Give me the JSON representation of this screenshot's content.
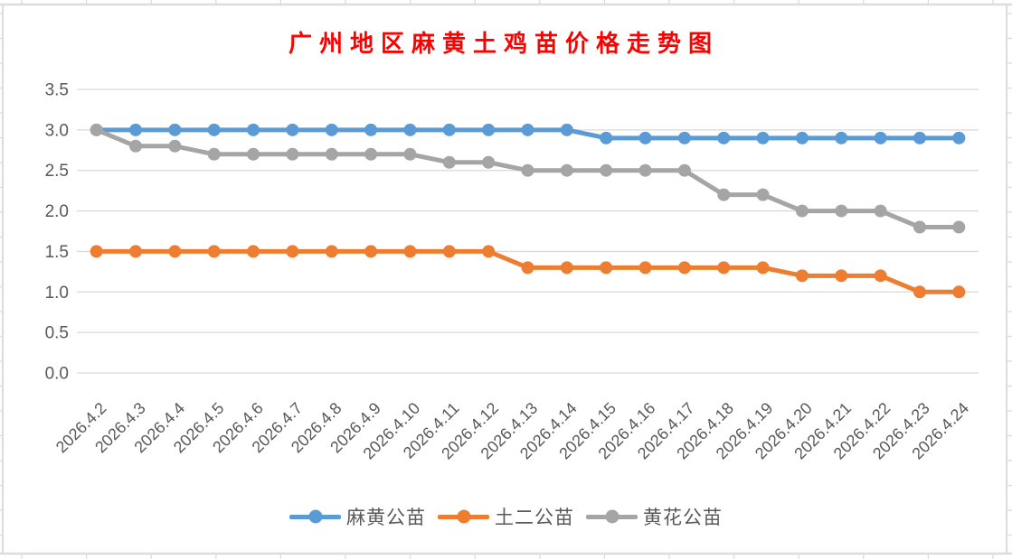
{
  "chart_data": {
    "type": "line",
    "title": "广州地区麻黄土鸡苗价格走势图",
    "title_color": "#FF0000",
    "categories": [
      "2026.4.2",
      "2026.4.3",
      "2026.4.4",
      "2026.4.5",
      "2026.4.6",
      "2026.4.7",
      "2026.4.8",
      "2026.4.9",
      "2026.4.10",
      "2026.4.11",
      "2026.4.12",
      "2026.4.13",
      "2026.4.14",
      "2026.4.15",
      "2026.4.16",
      "2026.4.17",
      "2026.4.18",
      "2026.4.19",
      "2026.4.20",
      "2026.4.21",
      "2026.4.22",
      "2026.4.23",
      "2026.4.24"
    ],
    "series": [
      {
        "name": "麻黄公苗",
        "color": "#5B9BD5",
        "values": [
          3.0,
          3.0,
          3.0,
          3.0,
          3.0,
          3.0,
          3.0,
          3.0,
          3.0,
          3.0,
          3.0,
          3.0,
          3.0,
          2.9,
          2.9,
          2.9,
          2.9,
          2.9,
          2.9,
          2.9,
          2.9,
          2.9,
          2.9
        ]
      },
      {
        "name": "土二公苗",
        "color": "#ED7D31",
        "values": [
          1.5,
          1.5,
          1.5,
          1.5,
          1.5,
          1.5,
          1.5,
          1.5,
          1.5,
          1.5,
          1.5,
          1.3,
          1.3,
          1.3,
          1.3,
          1.3,
          1.3,
          1.3,
          1.2,
          1.2,
          1.2,
          1.0,
          1.0
        ]
      },
      {
        "name": "黄花公苗",
        "color": "#A5A5A5",
        "values": [
          3.0,
          2.8,
          2.8,
          2.7,
          2.7,
          2.7,
          2.7,
          2.7,
          2.7,
          2.6,
          2.6,
          2.5,
          2.5,
          2.5,
          2.5,
          2.5,
          2.2,
          2.2,
          2.0,
          2.0,
          2.0,
          1.8,
          1.8
        ]
      }
    ],
    "xlabel": "",
    "ylabel": "",
    "ylim": [
      0,
      3.5
    ],
    "ytick_step": 0.5,
    "yticks": [
      "0.0",
      "0.5",
      "1.0",
      "1.5",
      "2.0",
      "2.5",
      "3.0",
      "3.5"
    ],
    "grid": true,
    "gridline_color": "#D9D9D9",
    "axis_text_color": "#595959",
    "legend_position": "bottom"
  }
}
